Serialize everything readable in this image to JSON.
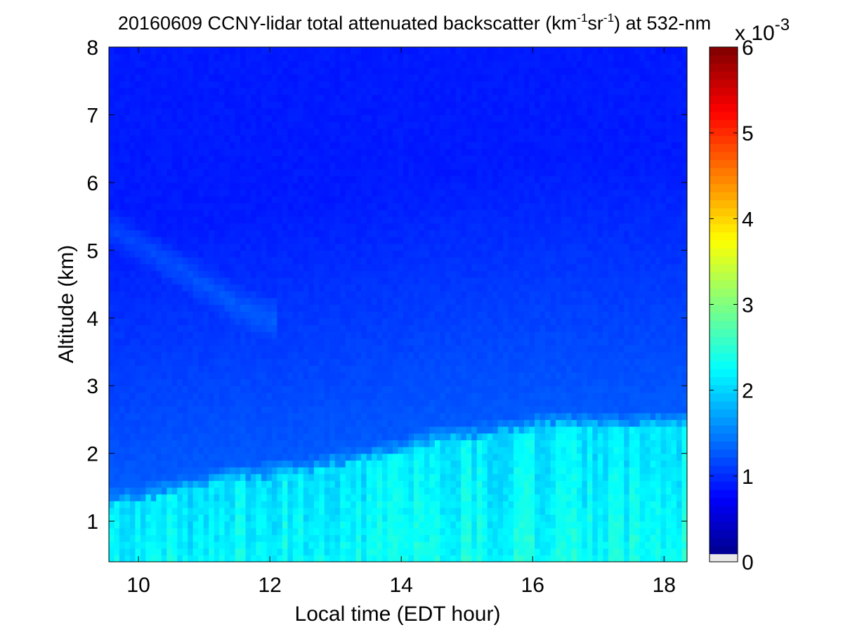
{
  "chart_data": {
    "type": "heatmap",
    "title": {
      "date": "20160609",
      "main": "CCNY-lidar total attenuated backscatter (km",
      "sup1": "-1",
      "mid": "sr",
      "sup2": "-1",
      "tail": ") at 532-nm"
    },
    "xlabel": "Local time (EDT hour)",
    "ylabel": "Altitude (km)",
    "xlim": [
      9.55,
      18.35
    ],
    "ylim": [
      0.4,
      8
    ],
    "xticks": [
      10,
      12,
      14,
      16,
      18
    ],
    "yticks": [
      1,
      2,
      3,
      4,
      5,
      6,
      7,
      8
    ],
    "colorbar": {
      "colormap": "jet",
      "range": [
        0,
        6
      ],
      "ticks": [
        0,
        1,
        2,
        3,
        4,
        5,
        6
      ],
      "multiplier_base": "x 10",
      "multiplier_exponent": "-3"
    },
    "boundary_layer_top_km": [
      {
        "t": 9.6,
        "z": 1.25
      },
      {
        "t": 10.0,
        "z": 1.3
      },
      {
        "t": 10.5,
        "z": 1.4
      },
      {
        "t": 11.0,
        "z": 1.5
      },
      {
        "t": 11.5,
        "z": 1.6
      },
      {
        "t": 12.0,
        "z": 1.65
      },
      {
        "t": 12.5,
        "z": 1.7
      },
      {
        "t": 13.0,
        "z": 1.8
      },
      {
        "t": 13.5,
        "z": 1.9
      },
      {
        "t": 14.0,
        "z": 2.0
      },
      {
        "t": 14.5,
        "z": 2.15
      },
      {
        "t": 15.0,
        "z": 2.2
      },
      {
        "t": 15.5,
        "z": 2.25
      },
      {
        "t": 16.0,
        "z": 2.35
      },
      {
        "t": 16.5,
        "z": 2.4
      },
      {
        "t": 17.0,
        "z": 2.35
      },
      {
        "t": 17.5,
        "z": 2.35
      },
      {
        "t": 18.0,
        "z": 2.4
      },
      {
        "t": 18.35,
        "z": 2.4
      }
    ],
    "backscatter_levels_1e-3": {
      "boundary_layer": 2.1,
      "lower_free_troposphere": 1.3,
      "upper_free_troposphere": 0.9
    },
    "elevated_aerosol_layer": [
      {
        "t": 9.6,
        "z": 5.3
      },
      {
        "t": 10.0,
        "z": 5.1
      },
      {
        "t": 10.5,
        "z": 4.8
      },
      {
        "t": 11.0,
        "z": 4.5
      },
      {
        "t": 11.5,
        "z": 4.2
      },
      {
        "t": 12.0,
        "z": 4.0
      }
    ]
  }
}
